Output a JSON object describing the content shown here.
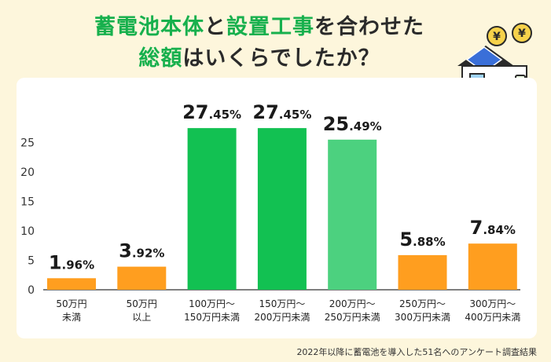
{
  "title": {
    "line1_hl": "蓄電池本体",
    "line1_mid": "と",
    "line1_hl2": "設置工事",
    "line1_end": "を合わせた",
    "line2_hl": "総額",
    "line2_end": "はいくらでしたか？"
  },
  "source": "2022年以降に蓄電池を導入した51名へのアンケート調査結果",
  "colors": {
    "green": "#12c152",
    "green_light": "#4cd17f",
    "orange": "#ff9e1f",
    "highlight": "#17b04d"
  },
  "icons": [
    "house-solar-icon",
    "yen-coin-icon"
  ],
  "chart_data": {
    "type": "bar",
    "categories": [
      [
        "50万円",
        "未満"
      ],
      [
        "50万円",
        "以上"
      ],
      [
        "100万円～",
        "150万円未満"
      ],
      [
        "150万円～",
        "200万円未満"
      ],
      [
        "200万円～",
        "250万円未満"
      ],
      [
        "250万円～",
        "300万円未満"
      ],
      [
        "300万円～",
        "400万円未満"
      ]
    ],
    "values": [
      1.96,
      3.92,
      27.45,
      27.45,
      25.49,
      5.88,
      7.84
    ],
    "labels": [
      [
        "1",
        ".96%"
      ],
      [
        "3",
        ".92%"
      ],
      [
        "27",
        ".45%"
      ],
      [
        "27",
        ".45%"
      ],
      [
        "25",
        ".49%"
      ],
      [
        "5",
        ".88%"
      ],
      [
        "7",
        ".84%"
      ]
    ],
    "bar_colors": [
      "#ff9e1f",
      "#ff9e1f",
      "#12c152",
      "#12c152",
      "#4cd17f",
      "#ff9e1f",
      "#ff9e1f"
    ],
    "yticks": [
      0,
      5,
      10,
      15,
      20,
      25
    ],
    "ylim": [
      0,
      30
    ],
    "grid": false,
    "legend": "none"
  }
}
